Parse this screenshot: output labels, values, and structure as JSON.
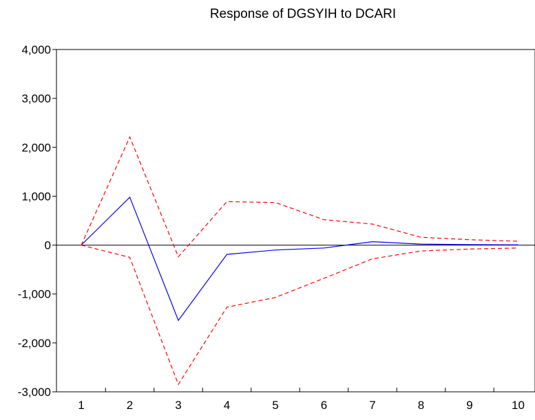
{
  "chart_data": {
    "type": "line",
    "title": "Response of DGSYIH to DCARI",
    "xlabel": "",
    "ylabel": "",
    "categories": [
      "1",
      "2",
      "3",
      "4",
      "5",
      "6",
      "7",
      "8",
      "9",
      "10"
    ],
    "ylim": [
      -3000,
      4000
    ],
    "yticks": [
      4000,
      3000,
      2000,
      1000,
      0,
      -1000,
      -2000,
      -3000
    ],
    "ytick_labels": [
      "4,000",
      "3,000",
      "2,000",
      "1,000",
      "0",
      "-1,000",
      "-2,000",
      "-3,000"
    ],
    "zero_line": true,
    "grid": false,
    "legend": "none",
    "series": [
      {
        "role": "response",
        "color": "#0000ff",
        "style": "solid",
        "values": [
          0,
          980,
          -1540,
          -190,
          -100,
          -60,
          70,
          20,
          10,
          5
        ]
      },
      {
        "role": "upper band",
        "color": "#ff0000",
        "style": "dashed",
        "values": [
          0,
          2210,
          -240,
          890,
          870,
          520,
          430,
          160,
          110,
          80
        ]
      },
      {
        "role": "lower band",
        "color": "#ff0000",
        "style": "dashed",
        "values": [
          0,
          -250,
          -2850,
          -1270,
          -1070,
          -680,
          -280,
          -120,
          -80,
          -60
        ]
      }
    ]
  }
}
